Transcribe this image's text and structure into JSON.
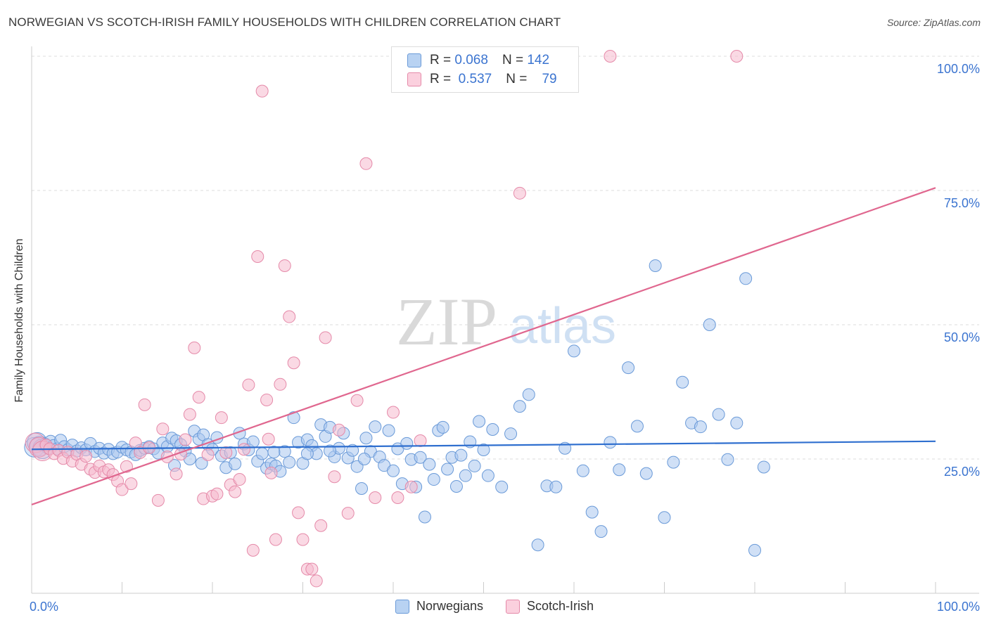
{
  "title": "NORWEGIAN VS SCOTCH-IRISH FAMILY HOUSEHOLDS WITH CHILDREN CORRELATION CHART",
  "source": "Source: ZipAtlas.com",
  "watermark": {
    "zip": "ZIP",
    "atlas": "atlas"
  },
  "legend": {
    "rows": [
      {
        "r_label": "R =",
        "r_value": "0.068",
        "n_label": "N =",
        "n_value": "142"
      },
      {
        "r_label": "R =",
        "r_value": "0.537",
        "n_label": "N =",
        "n_value": "79"
      }
    ]
  },
  "colors": {
    "norwegians_fill": "#a9c7ef",
    "norwegians_stroke": "#6a9ad8",
    "norwegians_line": "#2f6fcf",
    "scotch_fill": "#f6b9ce",
    "scotch_stroke": "#e58aa9",
    "scotch_line": "#e0678f",
    "axis_label": "#3b74d0",
    "grid": "#dddddd"
  },
  "chart_data": {
    "type": "scatter",
    "title": "NORWEGIAN VS SCOTCH-IRISH FAMILY HOUSEHOLDS WITH CHILDREN CORRELATION CHART",
    "xlabel": "",
    "ylabel": "Family Households with Children",
    "xlim": [
      0,
      100
    ],
    "ylim": [
      0,
      102
    ],
    "x_tick_labels": [
      "0.0%",
      "100.0%"
    ],
    "y_tick_labels": [
      "25.0%",
      "50.0%",
      "75.0%",
      "100.0%"
    ],
    "y_ticks": [
      25,
      50,
      75,
      100
    ],
    "grid": true,
    "legend_position": "bottom",
    "series": [
      {
        "name": "Norwegians",
        "R": 0.068,
        "N": 142,
        "trend": [
          [
            0,
            26.8
          ],
          [
            100,
            28.3
          ]
        ],
        "points": [
          [
            0.3,
            27.2
          ],
          [
            0.6,
            28.1
          ],
          [
            0.9,
            27.4
          ],
          [
            1.2,
            26.9
          ],
          [
            1.5,
            27.8
          ],
          [
            1.8,
            27.0
          ],
          [
            2.1,
            28.3
          ],
          [
            2.4,
            27.5
          ],
          [
            2.8,
            26.9
          ],
          [
            3.2,
            28.5
          ],
          [
            3.6,
            27.3
          ],
          [
            4.0,
            26.7
          ],
          [
            4.5,
            27.6
          ],
          [
            5.0,
            26.5
          ],
          [
            5.5,
            27.1
          ],
          [
            6.0,
            26.7
          ],
          [
            6.5,
            27.9
          ],
          [
            7.0,
            26.4
          ],
          [
            7.5,
            27.0
          ],
          [
            8.0,
            26.1
          ],
          [
            8.5,
            26.8
          ],
          [
            9.0,
            26.0
          ],
          [
            9.5,
            26.3
          ],
          [
            10.0,
            27.2
          ],
          [
            10.5,
            26.7
          ],
          [
            11.0,
            26.3
          ],
          [
            11.5,
            25.8
          ],
          [
            12.0,
            26.6
          ],
          [
            12.5,
            27.0
          ],
          [
            13.0,
            27.3
          ],
          [
            13.5,
            26.9
          ],
          [
            14.0,
            26.1
          ],
          [
            14.5,
            28.0
          ],
          [
            15.0,
            27.3
          ],
          [
            15.5,
            28.9
          ],
          [
            16.0,
            28.4
          ],
          [
            16.5,
            27.7
          ],
          [
            17.0,
            26.5
          ],
          [
            17.5,
            25.0
          ],
          [
            18.0,
            30.2
          ],
          [
            18.5,
            28.7
          ],
          [
            19.0,
            29.5
          ],
          [
            19.5,
            27.7
          ],
          [
            20.0,
            26.8
          ],
          [
            20.5,
            29.0
          ],
          [
            21.0,
            25.6
          ],
          [
            21.5,
            23.4
          ],
          [
            22.0,
            26.2
          ],
          [
            22.5,
            24.1
          ],
          [
            23.0,
            29.8
          ],
          [
            23.5,
            27.8
          ],
          [
            24.0,
            26.7
          ],
          [
            24.5,
            28.2
          ],
          [
            25.0,
            24.6
          ],
          [
            25.5,
            26.0
          ],
          [
            26.0,
            23.3
          ],
          [
            26.5,
            24.1
          ],
          [
            27.0,
            23.7
          ],
          [
            27.5,
            22.7
          ],
          [
            28.0,
            26.4
          ],
          [
            28.5,
            24.4
          ],
          [
            29.0,
            32.7
          ],
          [
            29.5,
            28.1
          ],
          [
            30.0,
            24.2
          ],
          [
            30.5,
            28.6
          ],
          [
            31.0,
            27.5
          ],
          [
            31.5,
            26.0
          ],
          [
            32.0,
            31.4
          ],
          [
            32.5,
            29.2
          ],
          [
            33.0,
            30.9
          ],
          [
            33.5,
            25.4
          ],
          [
            34.0,
            27.0
          ],
          [
            34.5,
            29.8
          ],
          [
            35.0,
            25.2
          ],
          [
            35.5,
            26.6
          ],
          [
            36.0,
            23.6
          ],
          [
            36.5,
            19.5
          ],
          [
            37.0,
            28.9
          ],
          [
            37.5,
            26.4
          ],
          [
            38.0,
            31.0
          ],
          [
            38.5,
            25.4
          ],
          [
            39.0,
            23.8
          ],
          [
            39.5,
            30.3
          ],
          [
            40.0,
            22.8
          ],
          [
            40.5,
            26.9
          ],
          [
            41.0,
            20.4
          ],
          [
            41.5,
            27.9
          ],
          [
            42.0,
            24.9
          ],
          [
            42.5,
            19.8
          ],
          [
            43.0,
            25.3
          ],
          [
            43.5,
            14.2
          ],
          [
            44.0,
            24.0
          ],
          [
            44.5,
            21.2
          ],
          [
            45.0,
            30.3
          ],
          [
            45.5,
            30.9
          ],
          [
            46.0,
            23.1
          ],
          [
            46.5,
            25.3
          ],
          [
            47.0,
            19.9
          ],
          [
            47.5,
            25.7
          ],
          [
            48.0,
            21.9
          ],
          [
            48.5,
            28.2
          ],
          [
            49.0,
            23.7
          ],
          [
            49.5,
            32.0
          ],
          [
            50.0,
            26.7
          ],
          [
            50.5,
            21.9
          ],
          [
            51.0,
            30.5
          ],
          [
            52.0,
            19.8
          ],
          [
            53.0,
            29.7
          ],
          [
            54.0,
            34.8
          ],
          [
            55.0,
            37.0
          ],
          [
            56.0,
            9.0
          ],
          [
            57.0,
            20.0
          ],
          [
            58.0,
            19.8
          ],
          [
            59.0,
            27.0
          ],
          [
            60.0,
            45.1
          ],
          [
            61.0,
            22.8
          ],
          [
            62.0,
            15.1
          ],
          [
            63.0,
            11.5
          ],
          [
            64.0,
            28.1
          ],
          [
            65.0,
            23.0
          ],
          [
            66.0,
            42.0
          ],
          [
            67.0,
            31.1
          ],
          [
            68.0,
            22.3
          ],
          [
            69.0,
            61.0
          ],
          [
            70.0,
            14.1
          ],
          [
            71.0,
            24.4
          ],
          [
            72.0,
            39.3
          ],
          [
            73.0,
            31.7
          ],
          [
            74.0,
            31.0
          ],
          [
            75.0,
            50.0
          ],
          [
            76.0,
            33.3
          ],
          [
            77.0,
            24.9
          ],
          [
            78.0,
            31.7
          ],
          [
            79.0,
            58.6
          ],
          [
            80.0,
            8.0
          ],
          [
            81.0,
            23.5
          ],
          [
            30.5,
            26.0
          ],
          [
            33.0,
            26.5
          ],
          [
            36.8,
            25.0
          ],
          [
            26.8,
            26.3
          ],
          [
            18.8,
            24.2
          ],
          [
            15.8,
            23.8
          ]
        ]
      },
      {
        "name": "Scotch-Irish",
        "R": 0.537,
        "N": 79,
        "trend": [
          [
            0,
            16.5
          ],
          [
            100,
            75.5
          ]
        ],
        "points": [
          [
            0.4,
            28.0
          ],
          [
            0.8,
            27.2
          ],
          [
            1.2,
            26.5
          ],
          [
            1.6,
            27.6
          ],
          [
            2.0,
            26.9
          ],
          [
            2.5,
            26.0
          ],
          [
            3.0,
            26.6
          ],
          [
            3.5,
            25.1
          ],
          [
            4.0,
            26.3
          ],
          [
            4.5,
            24.6
          ],
          [
            5.0,
            25.9
          ],
          [
            5.5,
            24.0
          ],
          [
            6.0,
            25.5
          ],
          [
            6.5,
            23.1
          ],
          [
            7.0,
            22.5
          ],
          [
            7.5,
            23.7
          ],
          [
            8.0,
            22.6
          ],
          [
            8.5,
            23.0
          ],
          [
            9.0,
            22.1
          ],
          [
            9.5,
            20.9
          ],
          [
            10.0,
            19.3
          ],
          [
            10.5,
            23.6
          ],
          [
            11.0,
            20.4
          ],
          [
            11.5,
            28.0
          ],
          [
            12.0,
            26.2
          ],
          [
            12.5,
            35.1
          ],
          [
            13.0,
            27.1
          ],
          [
            14.0,
            17.3
          ],
          [
            14.5,
            30.6
          ],
          [
            15.0,
            25.4
          ],
          [
            16.0,
            22.2
          ],
          [
            16.5,
            25.9
          ],
          [
            17.0,
            28.6
          ],
          [
            17.5,
            33.3
          ],
          [
            18.0,
            45.7
          ],
          [
            18.5,
            36.5
          ],
          [
            19.0,
            17.6
          ],
          [
            19.5,
            25.8
          ],
          [
            20.0,
            18.1
          ],
          [
            20.5,
            18.5
          ],
          [
            21.0,
            32.7
          ],
          [
            21.5,
            26.2
          ],
          [
            22.0,
            20.2
          ],
          [
            22.5,
            18.9
          ],
          [
            23.0,
            21.2
          ],
          [
            23.5,
            26.8
          ],
          [
            24.0,
            38.8
          ],
          [
            24.5,
            8.0
          ],
          [
            25.0,
            62.7
          ],
          [
            25.5,
            93.5
          ],
          [
            26.0,
            36.0
          ],
          [
            26.5,
            22.4
          ],
          [
            27.0,
            10.0
          ],
          [
            27.5,
            38.9
          ],
          [
            28.0,
            61.0
          ],
          [
            28.5,
            51.5
          ],
          [
            29.0,
            42.9
          ],
          [
            29.5,
            15.0
          ],
          [
            30.0,
            10.0
          ],
          [
            30.5,
            4.5
          ],
          [
            31.0,
            4.5
          ],
          [
            31.5,
            2.3
          ],
          [
            32.0,
            12.6
          ],
          [
            32.5,
            47.6
          ],
          [
            33.5,
            21.7
          ],
          [
            34.0,
            30.4
          ],
          [
            35.0,
            14.9
          ],
          [
            36.0,
            35.9
          ],
          [
            37.0,
            80.0
          ],
          [
            38.0,
            17.8
          ],
          [
            40.0,
            33.7
          ],
          [
            42.0,
            19.8
          ],
          [
            43.0,
            28.4
          ],
          [
            54.0,
            74.5
          ],
          [
            59.5,
            100.0
          ],
          [
            64.0,
            100.0
          ],
          [
            78.0,
            100.0
          ],
          [
            40.5,
            17.8
          ],
          [
            26.2,
            28.7
          ]
        ]
      }
    ]
  }
}
